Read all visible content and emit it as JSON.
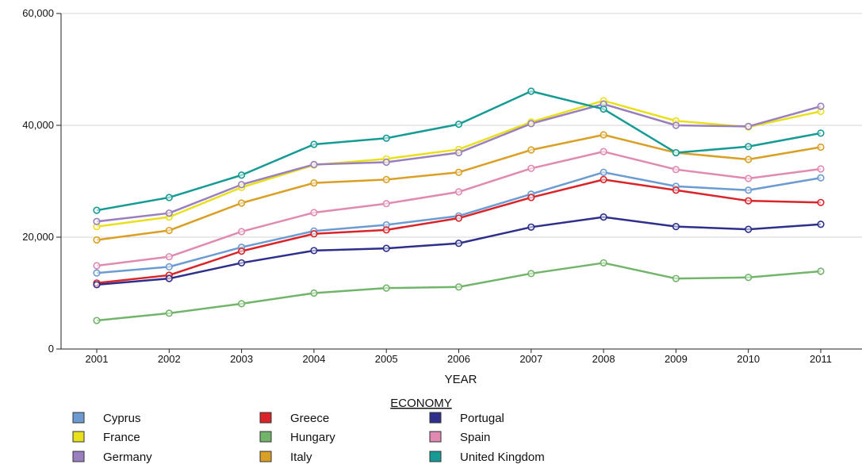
{
  "chart_data": {
    "type": "line",
    "xlabel": "YEAR",
    "ylabel": "",
    "ylim": [
      0,
      60000
    ],
    "y_ticks": [
      0,
      20000,
      40000,
      60000
    ],
    "y_tick_labels": [
      "0",
      "20,000",
      "40,000",
      "60,000"
    ],
    "grid": "horizontal",
    "categories": [
      "2001",
      "2002",
      "2003",
      "2004",
      "2005",
      "2006",
      "2007",
      "2008",
      "2009",
      "2010",
      "2011"
    ],
    "legend": {
      "title": "ECONOMY",
      "placement": "bottom"
    },
    "series": [
      {
        "name": "Cyprus",
        "color": "#6c9bd2",
        "values": [
          13600,
          14700,
          18200,
          21100,
          22200,
          23800,
          27700,
          31600,
          29100,
          28400,
          30600
        ]
      },
      {
        "name": "France",
        "color": "#e8e01a",
        "values": [
          21900,
          23600,
          28900,
          32900,
          34000,
          35700,
          40600,
          44400,
          40800,
          39700,
          42500
        ]
      },
      {
        "name": "Germany",
        "color": "#9a7fbf",
        "values": [
          22800,
          24300,
          29400,
          33000,
          33400,
          35100,
          40300,
          43800,
          40000,
          39800,
          43400
        ]
      },
      {
        "name": "Greece",
        "color": "#d9242a",
        "values": [
          11800,
          13200,
          17500,
          20600,
          21300,
          23400,
          27100,
          30300,
          28400,
          26500,
          26200
        ]
      },
      {
        "name": "Hungary",
        "color": "#72b56a",
        "values": [
          5100,
          6400,
          8100,
          10000,
          10900,
          11100,
          13500,
          15400,
          12600,
          12800,
          13900
        ]
      },
      {
        "name": "Italy",
        "color": "#d9a025",
        "values": [
          19500,
          21200,
          26100,
          29700,
          30300,
          31600,
          35600,
          38300,
          35100,
          33900,
          36100
        ]
      },
      {
        "name": "Portugal",
        "color": "#2d2f8a",
        "values": [
          11500,
          12600,
          15400,
          17600,
          18000,
          18900,
          21800,
          23600,
          21900,
          21400,
          22300
        ]
      },
      {
        "name": "Spain",
        "color": "#e08ab2",
        "values": [
          14900,
          16500,
          21000,
          24400,
          26000,
          28100,
          32300,
          35300,
          32100,
          30500,
          32200
        ]
      },
      {
        "name": "United Kingdom",
        "color": "#169b94",
        "values": [
          24800,
          27100,
          31100,
          36600,
          37700,
          40200,
          46100,
          42900,
          35100,
          36200,
          38600
        ]
      }
    ]
  }
}
